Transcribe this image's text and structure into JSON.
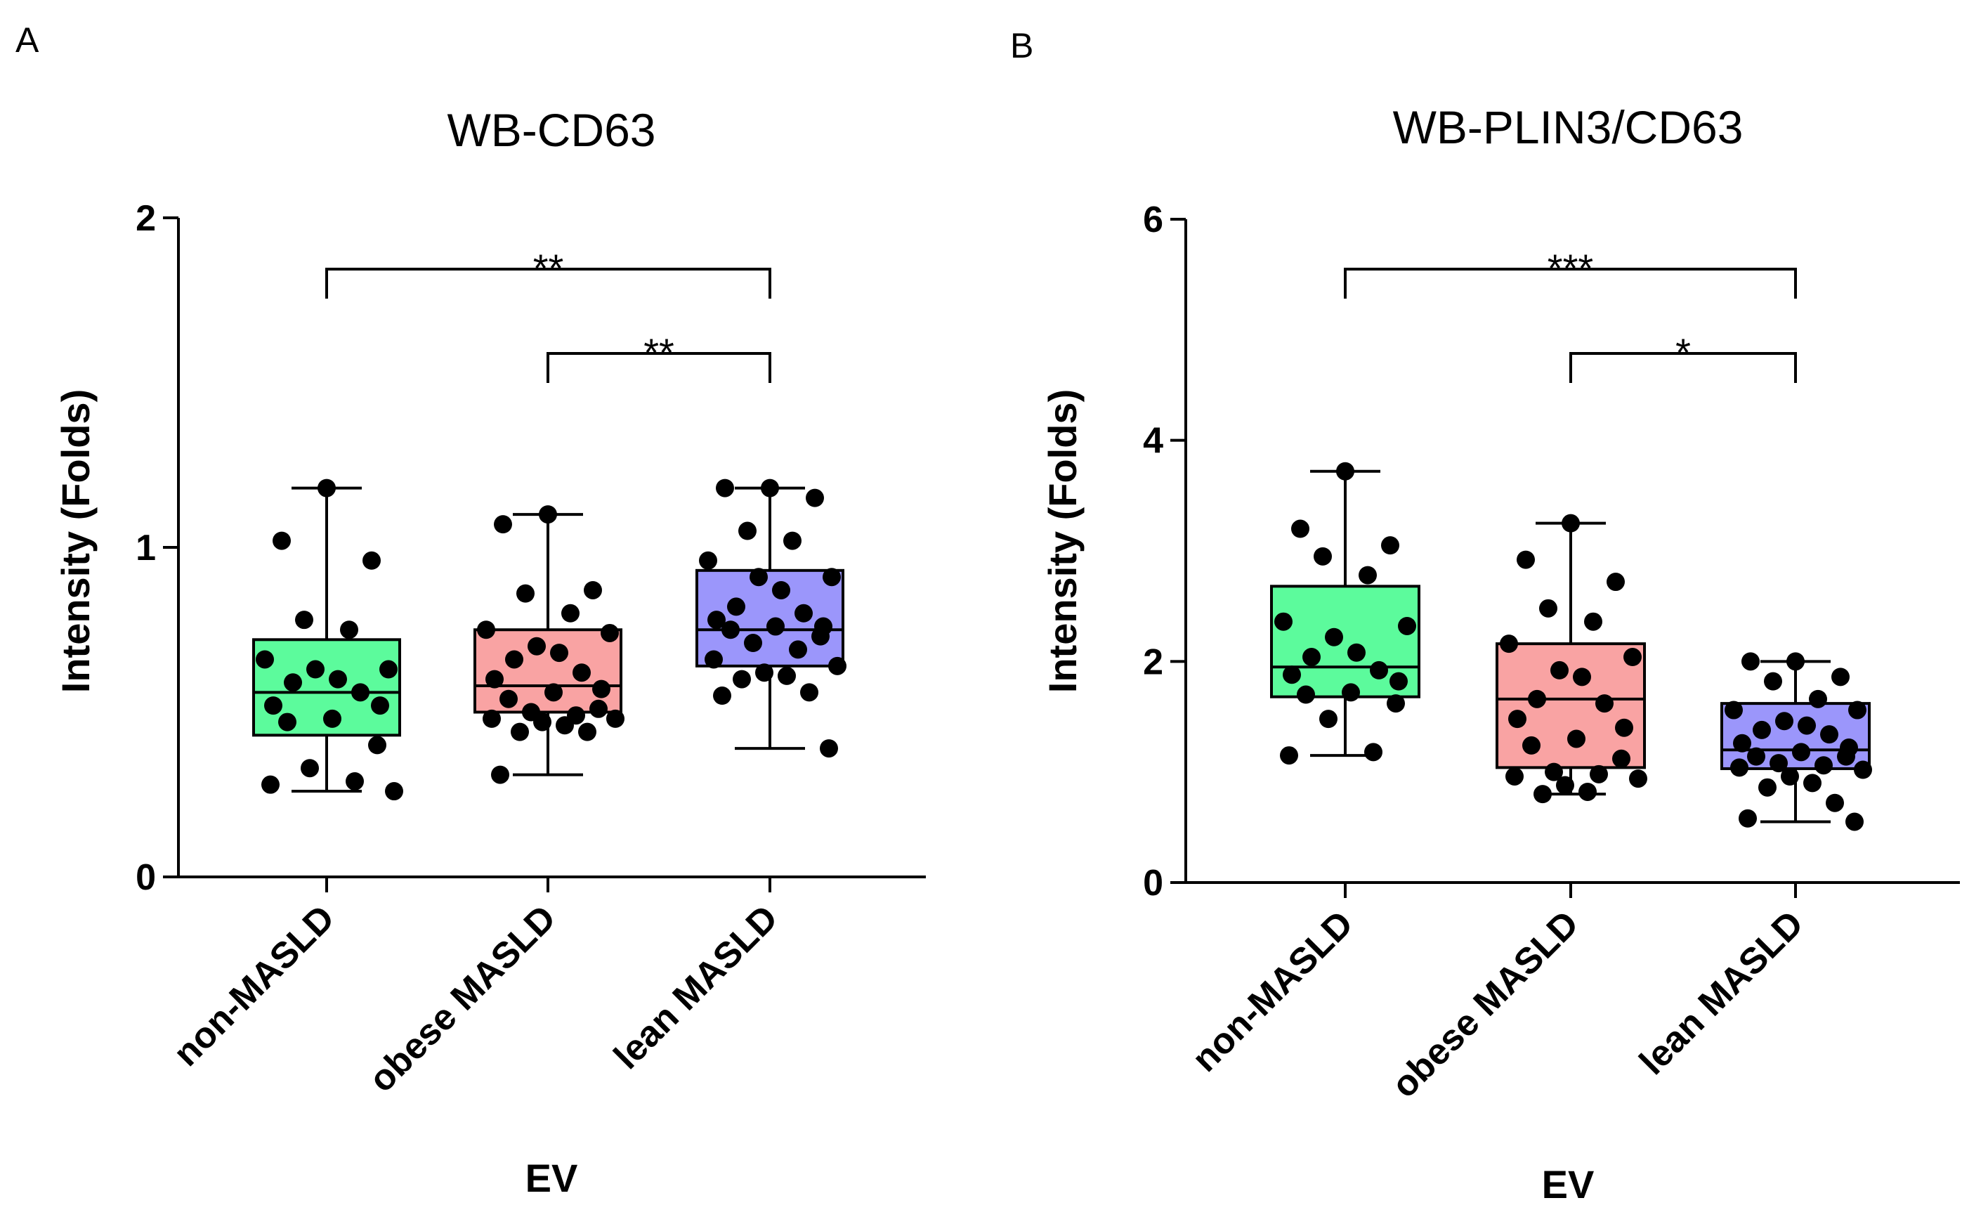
{
  "chart_data": [
    {
      "panel": "A",
      "type": "box",
      "title": "WB-CD63",
      "xlabel": "EV",
      "ylabel": "Intensity (Folds)",
      "ylim": [
        0,
        2
      ],
      "yticks": [
        0,
        1,
        2
      ],
      "ytick_labels": [
        "0",
        "1",
        "2"
      ],
      "categories": [
        "non-MASLD",
        "obese MASLD",
        "lean MASLD"
      ],
      "colors": [
        "#5cfb9c",
        "#f9a3a3",
        "#9b96fb"
      ],
      "boxes": [
        {
          "min": 0.26,
          "q1": 0.43,
          "median": 0.56,
          "q3": 0.72,
          "max": 1.18
        },
        {
          "min": 0.31,
          "q1": 0.5,
          "median": 0.58,
          "q3": 0.75,
          "max": 1.1
        },
        {
          "min": 0.39,
          "q1": 0.64,
          "median": 0.75,
          "q3": 0.93,
          "max": 1.18
        }
      ],
      "points": [
        [
          1.18,
          1.02,
          0.96,
          0.78,
          0.75,
          0.66,
          0.63,
          0.63,
          0.6,
          0.59,
          0.56,
          0.52,
          0.52,
          0.48,
          0.47,
          0.4,
          0.33,
          0.29,
          0.28,
          0.26
        ],
        [
          1.1,
          1.07,
          0.87,
          0.86,
          0.8,
          0.75,
          0.74,
          0.7,
          0.68,
          0.66,
          0.62,
          0.6,
          0.57,
          0.56,
          0.54,
          0.51,
          0.5,
          0.49,
          0.48,
          0.48,
          0.47,
          0.46,
          0.44,
          0.44,
          0.31
        ],
        [
          1.18,
          1.18,
          1.15,
          1.05,
          1.02,
          0.96,
          0.91,
          0.91,
          0.87,
          0.82,
          0.8,
          0.78,
          0.76,
          0.76,
          0.75,
          0.73,
          0.71,
          0.69,
          0.66,
          0.64,
          0.62,
          0.61,
          0.6,
          0.56,
          0.55,
          0.39
        ]
      ],
      "comparisons": [
        {
          "from": 0,
          "to": 2,
          "label": "**"
        },
        {
          "from": 1,
          "to": 2,
          "label": "**"
        }
      ]
    },
    {
      "panel": "B",
      "type": "box",
      "title": "WB-PLIN3/CD63",
      "xlabel": "EV",
      "ylabel": "Intensity (Folds)",
      "ylim": [
        0,
        6
      ],
      "yticks": [
        0,
        2,
        4,
        6
      ],
      "ytick_labels": [
        "0",
        "2",
        "4",
        "6"
      ],
      "categories": [
        "non-MASLD",
        "obese MASLD",
        "lean MASLD"
      ],
      "colors": [
        "#5cfb9c",
        "#f9a3a3",
        "#9b96fb"
      ],
      "boxes": [
        {
          "min": 1.15,
          "q1": 1.68,
          "median": 1.95,
          "q3": 2.68,
          "max": 3.72
        },
        {
          "min": 0.8,
          "q1": 1.04,
          "median": 1.66,
          "q3": 2.16,
          "max": 3.25
        },
        {
          "min": 0.55,
          "q1": 1.03,
          "median": 1.2,
          "q3": 1.62,
          "max": 2.0
        }
      ],
      "points": [
        [
          3.72,
          3.2,
          3.05,
          2.95,
          2.78,
          2.36,
          2.32,
          2.22,
          2.08,
          2.04,
          1.92,
          1.88,
          1.82,
          1.72,
          1.7,
          1.62,
          1.48,
          1.18,
          1.15
        ],
        [
          3.25,
          2.92,
          2.72,
          2.48,
          2.36,
          2.16,
          2.04,
          1.92,
          1.86,
          1.66,
          1.62,
          1.48,
          1.4,
          1.3,
          1.24,
          1.12,
          1.0,
          0.98,
          0.96,
          0.94,
          0.88,
          0.82,
          0.8
        ],
        [
          2.0,
          2.0,
          1.86,
          1.82,
          1.66,
          1.56,
          1.56,
          1.46,
          1.42,
          1.38,
          1.34,
          1.26,
          1.22,
          1.18,
          1.14,
          1.14,
          1.08,
          1.06,
          1.04,
          1.02,
          0.96,
          0.9,
          0.86,
          0.72,
          0.58,
          0.55
        ]
      ],
      "comparisons": [
        {
          "from": 0,
          "to": 2,
          "label": "***"
        },
        {
          "from": 1,
          "to": 2,
          "label": "*"
        }
      ]
    }
  ]
}
